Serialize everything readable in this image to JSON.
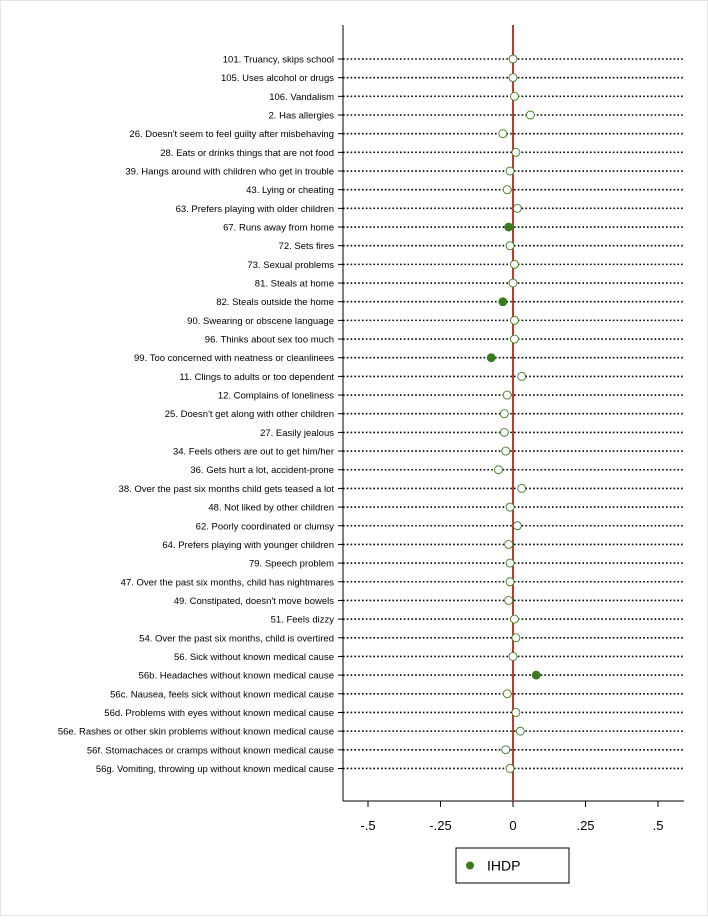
{
  "chart_data": {
    "type": "dot",
    "orientation": "horizontal",
    "xlim": [
      -0.6,
      0.6
    ],
    "xticks": [
      -0.5,
      -0.25,
      0,
      0.25,
      0.5
    ],
    "xtick_labels": [
      "-.5",
      "-.25",
      "0",
      ".25",
      ".5"
    ],
    "reference_line": {
      "x": 0,
      "color": "#c0392b"
    },
    "grid": "dotted horizontal lines per item",
    "legend": {
      "position": "bottom-center",
      "entries": [
        "IHDP"
      ]
    },
    "series": [
      {
        "name": "IHDP",
        "color": "#3a7d1e"
      }
    ],
    "items": [
      {
        "label": "101. Truancy, skips school",
        "value": 0.0,
        "significant": false
      },
      {
        "label": "105. Uses alcohol or drugs",
        "value": 0.0,
        "significant": false
      },
      {
        "label": "106. Vandalism",
        "value": 0.005,
        "significant": false
      },
      {
        "label": "2. Has allergies",
        "value": 0.06,
        "significant": false
      },
      {
        "label": "26. Doesn't seem to feel guilty after misbehaving",
        "value": -0.035,
        "significant": false
      },
      {
        "label": "28. Eats or drinks things that are not food",
        "value": 0.01,
        "significant": false
      },
      {
        "label": "39. Hangs around with children who get in trouble",
        "value": -0.01,
        "significant": false
      },
      {
        "label": "43. Lying or cheating",
        "value": -0.02,
        "significant": false
      },
      {
        "label": "63. Prefers playing with older children",
        "value": 0.015,
        "significant": false
      },
      {
        "label": "67. Runs away from home",
        "value": -0.015,
        "significant": true
      },
      {
        "label": "72. Sets fires",
        "value": -0.01,
        "significant": false
      },
      {
        "label": "73. Sexual problems",
        "value": 0.005,
        "significant": false
      },
      {
        "label": "81. Steals at home",
        "value": 0.0,
        "significant": false
      },
      {
        "label": "82. Steals outside the home",
        "value": -0.035,
        "significant": true
      },
      {
        "label": "90. Swearing or obscene language",
        "value": 0.005,
        "significant": false
      },
      {
        "label": "96. Thinks about sex too much",
        "value": 0.005,
        "significant": false
      },
      {
        "label": "99. Too concerned with neatness or cleanlinees",
        "value": -0.075,
        "significant": true
      },
      {
        "label": "11. Clings to adults or too dependent",
        "value": 0.03,
        "significant": false
      },
      {
        "label": "12. Complains of loneliness",
        "value": -0.02,
        "significant": false
      },
      {
        "label": "25. Doesn't get along with other children",
        "value": -0.03,
        "significant": false
      },
      {
        "label": "27. Easily jealous",
        "value": -0.03,
        "significant": false
      },
      {
        "label": "34. Feels others are out to get him/her",
        "value": -0.025,
        "significant": false
      },
      {
        "label": "36. Gets hurt a lot, accident-prone",
        "value": -0.05,
        "significant": false
      },
      {
        "label": "38. Over the past six months child gets teased a lot",
        "value": 0.03,
        "significant": false
      },
      {
        "label": "48. Not liked by other children",
        "value": -0.01,
        "significant": false
      },
      {
        "label": "62. Poorly coordinated or clumsy",
        "value": 0.015,
        "significant": false
      },
      {
        "label": "64. Prefers playing with younger children",
        "value": -0.015,
        "significant": false
      },
      {
        "label": "79. Speech problem",
        "value": -0.01,
        "significant": false
      },
      {
        "label": "47. Over the past six months, child has nightmares",
        "value": -0.01,
        "significant": false
      },
      {
        "label": "49. Constipated, doesn't move bowels",
        "value": -0.015,
        "significant": false
      },
      {
        "label": "51. Feels dizzy",
        "value": 0.005,
        "significant": false
      },
      {
        "label": "54. Over the past six months, child is overtired",
        "value": 0.01,
        "significant": false
      },
      {
        "label": "56. Sick without known medical cause",
        "value": 0.0,
        "significant": false
      },
      {
        "label": "56b. Headaches without known medical cause",
        "value": 0.08,
        "significant": true
      },
      {
        "label": "56c. Nausea, feels sick without known medical cause",
        "value": -0.02,
        "significant": false
      },
      {
        "label": "56d. Problems with eyes without known medical cause",
        "value": 0.01,
        "significant": false
      },
      {
        "label": "56e. Rashes or other skin problems without known medical cause",
        "value": 0.025,
        "significant": false
      },
      {
        "label": "56f. Stomachaces or cramps without known medical cause",
        "value": -0.025,
        "significant": false
      },
      {
        "label": "56g. Vomiting, throwing up without known medical cause",
        "value": -0.01,
        "significant": false
      }
    ]
  }
}
